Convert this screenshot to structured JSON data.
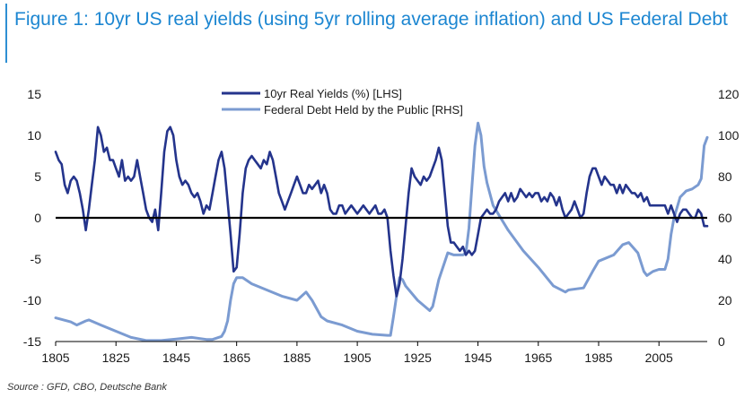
{
  "title": "Figure 1: 10yr US real yields (using 5yr rolling average inflation) and US Federal Debt",
  "source": "Source : GFD, CBO, Deutsche Bank",
  "chart_data": {
    "type": "line",
    "xlim": [
      1805,
      2021
    ],
    "x_ticks": [
      "1805",
      "1825",
      "1845",
      "1865",
      "1885",
      "1905",
      "1925",
      "1945",
      "1965",
      "1985",
      "2005"
    ],
    "y_left": {
      "lim": [
        -15,
        15
      ],
      "ticks": [
        "15",
        "10",
        "5",
        "0",
        "-5",
        "-10",
        "-15"
      ]
    },
    "y_right": {
      "lim": [
        0,
        120
      ],
      "ticks": [
        "120",
        "100",
        "80",
        "60",
        "40",
        "20",
        "0"
      ]
    },
    "legend_position": "top-center",
    "series": [
      {
        "name": "10yr Real Yields (%) [LHS]",
        "axis": "left",
        "color": "#24348c",
        "points": [
          [
            1805,
            8
          ],
          [
            1806,
            7
          ],
          [
            1807,
            6.5
          ],
          [
            1808,
            4
          ],
          [
            1809,
            3
          ],
          [
            1810,
            4.5
          ],
          [
            1811,
            5
          ],
          [
            1812,
            4.5
          ],
          [
            1813,
            3
          ],
          [
            1814,
            1
          ],
          [
            1815,
            -1.5
          ],
          [
            1816,
            1
          ],
          [
            1817,
            4
          ],
          [
            1818,
            7
          ],
          [
            1819,
            11
          ],
          [
            1820,
            10
          ],
          [
            1821,
            8
          ],
          [
            1822,
            8.5
          ],
          [
            1823,
            7
          ],
          [
            1824,
            7
          ],
          [
            1825,
            6
          ],
          [
            1826,
            5
          ],
          [
            1827,
            7
          ],
          [
            1828,
            4.5
          ],
          [
            1829,
            5
          ],
          [
            1830,
            4.5
          ],
          [
            1831,
            5
          ],
          [
            1832,
            7
          ],
          [
            1833,
            5
          ],
          [
            1834,
            3
          ],
          [
            1835,
            1
          ],
          [
            1836,
            0
          ],
          [
            1837,
            -0.5
          ],
          [
            1838,
            1
          ],
          [
            1839,
            -1.5
          ],
          [
            1840,
            3
          ],
          [
            1841,
            8
          ],
          [
            1842,
            10.5
          ],
          [
            1843,
            11
          ],
          [
            1844,
            10
          ],
          [
            1845,
            7
          ],
          [
            1846,
            5
          ],
          [
            1847,
            4
          ],
          [
            1848,
            4.5
          ],
          [
            1849,
            4
          ],
          [
            1850,
            3
          ],
          [
            1851,
            2.5
          ],
          [
            1852,
            3
          ],
          [
            1853,
            2
          ],
          [
            1854,
            0.5
          ],
          [
            1855,
            1.5
          ],
          [
            1856,
            1
          ],
          [
            1857,
            3
          ],
          [
            1858,
            5
          ],
          [
            1859,
            7
          ],
          [
            1860,
            8
          ],
          [
            1861,
            6
          ],
          [
            1862,
            2
          ],
          [
            1863,
            -2
          ],
          [
            1864,
            -6.5
          ],
          [
            1865,
            -6
          ],
          [
            1866,
            -2
          ],
          [
            1867,
            3
          ],
          [
            1868,
            6
          ],
          [
            1869,
            7
          ],
          [
            1870,
            7.5
          ],
          [
            1871,
            7
          ],
          [
            1872,
            6.5
          ],
          [
            1873,
            6
          ],
          [
            1874,
            7
          ],
          [
            1875,
            6.5
          ],
          [
            1876,
            8
          ],
          [
            1877,
            7
          ],
          [
            1878,
            5
          ],
          [
            1879,
            3
          ],
          [
            1880,
            2
          ],
          [
            1881,
            1
          ],
          [
            1882,
            2
          ],
          [
            1883,
            3
          ],
          [
            1884,
            4
          ],
          [
            1885,
            5
          ],
          [
            1886,
            4
          ],
          [
            1887,
            3
          ],
          [
            1888,
            3
          ],
          [
            1889,
            4
          ],
          [
            1890,
            3.5
          ],
          [
            1891,
            4
          ],
          [
            1892,
            4.5
          ],
          [
            1893,
            3
          ],
          [
            1894,
            4
          ],
          [
            1895,
            3
          ],
          [
            1896,
            1
          ],
          [
            1897,
            0.5
          ],
          [
            1898,
            0.5
          ],
          [
            1899,
            1.5
          ],
          [
            1900,
            1.5
          ],
          [
            1901,
            0.5
          ],
          [
            1902,
            1
          ],
          [
            1903,
            1.5
          ],
          [
            1904,
            1
          ],
          [
            1905,
            0.5
          ],
          [
            1906,
            1
          ],
          [
            1907,
            1.5
          ],
          [
            1908,
            1
          ],
          [
            1909,
            0.5
          ],
          [
            1910,
            1
          ],
          [
            1911,
            1.5
          ],
          [
            1912,
            0.5
          ],
          [
            1913,
            0.5
          ],
          [
            1914,
            1
          ],
          [
            1915,
            0
          ],
          [
            1916,
            -4
          ],
          [
            1917,
            -7
          ],
          [
            1918,
            -9.5
          ],
          [
            1919,
            -8
          ],
          [
            1920,
            -5
          ],
          [
            1921,
            -1
          ],
          [
            1922,
            3
          ],
          [
            1923,
            6
          ],
          [
            1924,
            5
          ],
          [
            1925,
            4.5
          ],
          [
            1926,
            4
          ],
          [
            1927,
            5
          ],
          [
            1928,
            4.5
          ],
          [
            1929,
            5
          ],
          [
            1930,
            6
          ],
          [
            1931,
            7
          ],
          [
            1932,
            8.5
          ],
          [
            1933,
            7
          ],
          [
            1934,
            3
          ],
          [
            1935,
            -1
          ],
          [
            1936,
            -3
          ],
          [
            1937,
            -3
          ],
          [
            1938,
            -3.5
          ],
          [
            1939,
            -4
          ],
          [
            1940,
            -3.5
          ],
          [
            1941,
            -4.5
          ],
          [
            1942,
            -4
          ],
          [
            1943,
            -4.5
          ],
          [
            1944,
            -4
          ],
          [
            1945,
            -2
          ],
          [
            1946,
            0
          ],
          [
            1947,
            0.5
          ],
          [
            1948,
            1
          ],
          [
            1949,
            0.5
          ],
          [
            1950,
            0.5
          ],
          [
            1951,
            1
          ],
          [
            1952,
            2
          ],
          [
            1953,
            2.5
          ],
          [
            1954,
            3
          ],
          [
            1955,
            2
          ],
          [
            1956,
            3
          ],
          [
            1957,
            2
          ],
          [
            1958,
            2.5
          ],
          [
            1959,
            3.5
          ],
          [
            1960,
            3
          ],
          [
            1961,
            2.5
          ],
          [
            1962,
            3
          ],
          [
            1963,
            2.5
          ],
          [
            1964,
            3
          ],
          [
            1965,
            3
          ],
          [
            1966,
            2
          ],
          [
            1967,
            2.5
          ],
          [
            1968,
            2
          ],
          [
            1969,
            3
          ],
          [
            1970,
            2.5
          ],
          [
            1971,
            1.5
          ],
          [
            1972,
            2.5
          ],
          [
            1973,
            1
          ],
          [
            1974,
            0
          ],
          [
            1975,
            0.5
          ],
          [
            1976,
            1
          ],
          [
            1977,
            2
          ],
          [
            1978,
            1
          ],
          [
            1979,
            0
          ],
          [
            1980,
            0.5
          ],
          [
            1981,
            3
          ],
          [
            1982,
            5
          ],
          [
            1983,
            6
          ],
          [
            1984,
            6
          ],
          [
            1985,
            5
          ],
          [
            1986,
            4
          ],
          [
            1987,
            5
          ],
          [
            1988,
            4.5
          ],
          [
            1989,
            4
          ],
          [
            1990,
            4
          ],
          [
            1991,
            3
          ],
          [
            1992,
            4
          ],
          [
            1993,
            3
          ],
          [
            1994,
            4
          ],
          [
            1995,
            3.5
          ],
          [
            1996,
            3
          ],
          [
            1997,
            3
          ],
          [
            1998,
            2.5
          ],
          [
            1999,
            3
          ],
          [
            2000,
            2
          ],
          [
            2001,
            2.5
          ],
          [
            2002,
            1.5
          ],
          [
            2003,
            1.5
          ],
          [
            2004,
            1.5
          ],
          [
            2005,
            1.5
          ],
          [
            2006,
            1.5
          ],
          [
            2007,
            1.5
          ],
          [
            2008,
            0.5
          ],
          [
            2009,
            1.5
          ],
          [
            2010,
            0.5
          ],
          [
            2011,
            -0.5
          ],
          [
            2012,
            0.5
          ],
          [
            2013,
            1
          ],
          [
            2014,
            1
          ],
          [
            2015,
            0.5
          ],
          [
            2016,
            0
          ],
          [
            2017,
            0
          ],
          [
            2018,
            1
          ],
          [
            2019,
            0.5
          ],
          [
            2020,
            -1
          ],
          [
            2021,
            -1
          ]
        ]
      },
      {
        "name": "Federal Debt Held by the Public [RHS]",
        "axis": "right",
        "color": "#7b9bd1",
        "points": [
          [
            1805,
            11.5
          ],
          [
            1810,
            9.5
          ],
          [
            1812,
            8
          ],
          [
            1815,
            10
          ],
          [
            1816,
            10.5
          ],
          [
            1820,
            8
          ],
          [
            1825,
            5
          ],
          [
            1830,
            2
          ],
          [
            1835,
            0.5
          ],
          [
            1840,
            0.5
          ],
          [
            1845,
            1.2
          ],
          [
            1850,
            2
          ],
          [
            1855,
            1
          ],
          [
            1857,
            1
          ],
          [
            1860,
            2.5
          ],
          [
            1861,
            5
          ],
          [
            1862,
            10
          ],
          [
            1863,
            20
          ],
          [
            1864,
            28
          ],
          [
            1865,
            31
          ],
          [
            1867,
            31
          ],
          [
            1870,
            28
          ],
          [
            1875,
            25
          ],
          [
            1880,
            22
          ],
          [
            1885,
            20
          ],
          [
            1888,
            24
          ],
          [
            1890,
            20
          ],
          [
            1893,
            12
          ],
          [
            1895,
            10
          ],
          [
            1900,
            8
          ],
          [
            1905,
            5
          ],
          [
            1910,
            3.5
          ],
          [
            1915,
            3
          ],
          [
            1916,
            3
          ],
          [
            1917,
            12
          ],
          [
            1918,
            22
          ],
          [
            1919,
            31
          ],
          [
            1920,
            30
          ],
          [
            1921,
            27
          ],
          [
            1925,
            20
          ],
          [
            1929,
            15
          ],
          [
            1930,
            17
          ],
          [
            1932,
            30
          ],
          [
            1935,
            43
          ],
          [
            1937,
            42
          ],
          [
            1940,
            42
          ],
          [
            1941,
            43
          ],
          [
            1942,
            55
          ],
          [
            1943,
            75
          ],
          [
            1944,
            95
          ],
          [
            1945,
            106
          ],
          [
            1946,
            100
          ],
          [
            1947,
            85
          ],
          [
            1948,
            77
          ],
          [
            1950,
            66
          ],
          [
            1955,
            54
          ],
          [
            1960,
            44
          ],
          [
            1965,
            36
          ],
          [
            1970,
            27
          ],
          [
            1974,
            24
          ],
          [
            1975,
            25
          ],
          [
            1980,
            26
          ],
          [
            1983,
            34
          ],
          [
            1985,
            39
          ],
          [
            1990,
            42
          ],
          [
            1993,
            47
          ],
          [
            1995,
            48
          ],
          [
            1998,
            43
          ],
          [
            2000,
            34
          ],
          [
            2001,
            32
          ],
          [
            2003,
            34
          ],
          [
            2005,
            35
          ],
          [
            2007,
            35
          ],
          [
            2008,
            40
          ],
          [
            2009,
            52
          ],
          [
            2010,
            60
          ],
          [
            2012,
            70
          ],
          [
            2014,
            73
          ],
          [
            2016,
            74
          ],
          [
            2018,
            76
          ],
          [
            2019,
            79
          ],
          [
            2020,
            95
          ],
          [
            2021,
            99
          ]
        ]
      }
    ]
  }
}
